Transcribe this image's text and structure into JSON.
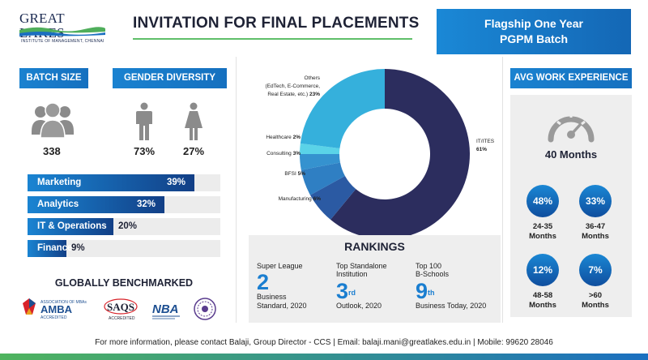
{
  "logo": {
    "name": "GREAT LAKES",
    "subtitle": "INSTITUTE OF MANAGEMENT, CHENNAI"
  },
  "title": "INVITATION FOR FINAL PLACEMENTS",
  "flagship": {
    "line1": "Flagship One Year",
    "line2": "PGPM Batch"
  },
  "batch": {
    "label": "BATCH SIZE",
    "icon": "people-group-icon",
    "value": "338"
  },
  "gender": {
    "label": "GENDER DIVERSITY",
    "male_icon": "male-figure-icon",
    "female_icon": "female-figure-icon",
    "male_pct": "73%",
    "female_pct": "27%"
  },
  "specializations": [
    {
      "name": "Marketing",
      "pct_label": "39%",
      "value": 39
    },
    {
      "name": "Analytics",
      "pct_label": "32%",
      "value": 32
    },
    {
      "name": "IT & Operations",
      "pct_label": "20%",
      "value": 20
    },
    {
      "name": "Finance",
      "pct_label": "9%",
      "value": 9
    }
  ],
  "benchmarked": {
    "title": "GLOBALLY BENCHMARKED",
    "logos": [
      "AMBA",
      "SAQS",
      "NBA",
      "NIRF"
    ],
    "amba_top": "ASSOCIATION OF MBAs",
    "amba_name": "AMBA",
    "amba_sub": "ACCREDITED",
    "saqs_name": "SAQS",
    "saqs_sub": "ACCREDITED",
    "nba_name": "NBA"
  },
  "chart_data": {
    "type": "pie",
    "variant": "donut",
    "title": "",
    "categories": [
      "IT/ITES",
      "Manufacturing",
      "BFSI",
      "Consulting",
      "Healthcare",
      "Others (EdTech, E-Commerce, Real Estate, etc.)"
    ],
    "values": [
      61,
      6,
      5,
      3,
      2,
      23
    ],
    "labels": [
      {
        "name": "IT/ITES",
        "pct": "61%"
      },
      {
        "name": "Manufacturing",
        "pct": "6%"
      },
      {
        "name": "BFSI",
        "pct": "5%"
      },
      {
        "name": "Consulting",
        "pct": "3%"
      },
      {
        "name": "Healthcare",
        "pct": "2%"
      },
      {
        "name_lines": [
          "Others",
          "(EdTech, E-Commerce,",
          "Real Estate, etc.)"
        ],
        "pct": "23%"
      }
    ],
    "colors": [
      "#2c2d5e",
      "#2b5aa3",
      "#2f7fc3",
      "#3592cf",
      "#5ad3e8",
      "#35b0dc"
    ]
  },
  "rankings": {
    "title": "RANKINGS",
    "items": [
      {
        "label_line1": "Super League",
        "label_line2": "",
        "rank": "2",
        "suffix": "",
        "source_line1": "Business",
        "source_line2": "Standard, 2020"
      },
      {
        "label_line1": "Top Standalone",
        "label_line2": "Institution",
        "rank": "3",
        "suffix": "rd",
        "source_line1": "Outlook, 2020",
        "source_line2": ""
      },
      {
        "label_line1": "Top 100",
        "label_line2": "B-Schools",
        "rank": "9",
        "suffix": "th",
        "source_line1": "Business Today, 2020",
        "source_line2": ""
      }
    ]
  },
  "experience": {
    "label": "AVG WORK EXPERIENCE",
    "icon": "speedometer-icon",
    "avg": "40 Months",
    "buckets": [
      {
        "pct": "48%",
        "range": "24-35",
        "unit": "Months"
      },
      {
        "pct": "33%",
        "range": "36-47",
        "unit": "Months"
      },
      {
        "pct": "12%",
        "range": "48-58",
        "unit": "Months"
      },
      {
        "pct": "7%",
        "range": ">60",
        "unit": "Months"
      }
    ]
  },
  "footer": "For more information, please contact Balaji, Group Director - CCS | Email: balaji.mani@greatlakes.edu.in | Mobile: 99620 28046",
  "colors": {
    "accent_blue": "#1a7ed0",
    "navy": "#2c2d5e",
    "green": "#5fbf69"
  }
}
